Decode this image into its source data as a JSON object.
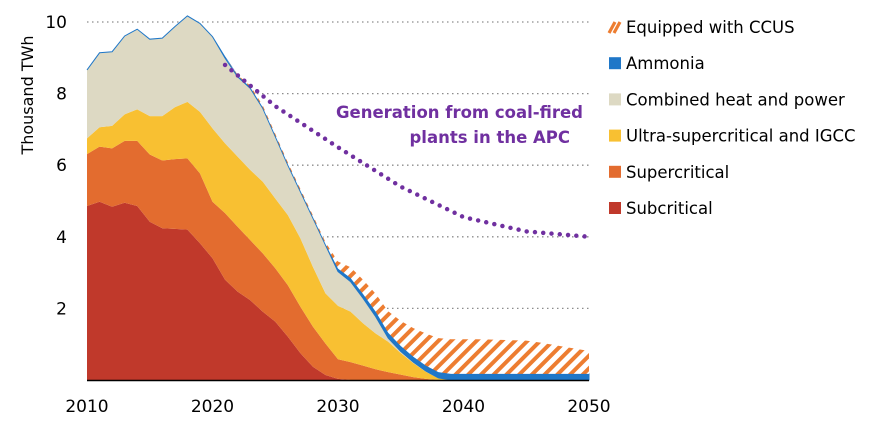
{
  "chart_data": {
    "type": "area",
    "stacked": true,
    "title": "",
    "xlabel": "",
    "ylabel": "Thousand TWh",
    "xlim": [
      2010,
      2050
    ],
    "ylim": [
      0,
      10
    ],
    "x_ticks": [
      2010,
      2020,
      2030,
      2040,
      2050
    ],
    "y_ticks": [
      2,
      4,
      6,
      8,
      10
    ],
    "grid": "horizontal dotted",
    "legend_position": "right",
    "x": [
      2010,
      2011,
      2012,
      2013,
      2014,
      2015,
      2016,
      2017,
      2018,
      2019,
      2020,
      2021,
      2022,
      2023,
      2024,
      2025,
      2026,
      2027,
      2028,
      2029,
      2030,
      2031,
      2032,
      2033,
      2034,
      2035,
      2036,
      2037,
      2038,
      2039,
      2040,
      2041,
      2042,
      2043,
      2044,
      2045,
      2046,
      2047,
      2048,
      2049,
      2050
    ],
    "series": [
      {
        "name": "Subcritical",
        "color": "#c0392b",
        "values": [
          4.86,
          4.98,
          4.84,
          4.95,
          4.86,
          4.42,
          4.24,
          4.22,
          4.2,
          3.82,
          3.4,
          2.8,
          2.47,
          2.23,
          1.91,
          1.63,
          1.21,
          0.75,
          0.37,
          0.14,
          0.03,
          0,
          0,
          0,
          0,
          0,
          0,
          0,
          0,
          0,
          0,
          0,
          0,
          0,
          0,
          0,
          0,
          0,
          0,
          0,
          0
        ]
      },
      {
        "name": "Supercritical",
        "color": "#e36c2f",
        "values": [
          1.45,
          1.54,
          1.63,
          1.73,
          1.82,
          1.88,
          1.89,
          1.95,
          1.99,
          1.95,
          1.58,
          1.86,
          1.81,
          1.68,
          1.63,
          1.49,
          1.44,
          1.3,
          1.12,
          0.88,
          0.55,
          0.5,
          0.4,
          0.3,
          0.22,
          0.15,
          0.08,
          0.03,
          0,
          0,
          0,
          0,
          0,
          0,
          0,
          0,
          0,
          0,
          0,
          0,
          0
        ]
      },
      {
        "name": "Ultra-supercritical and IGCC",
        "color": "#f8c032",
        "values": [
          0.44,
          0.54,
          0.63,
          0.74,
          0.88,
          1.07,
          1.24,
          1.45,
          1.58,
          1.72,
          2.05,
          1.95,
          1.96,
          1.96,
          2.0,
          1.95,
          1.96,
          1.91,
          1.67,
          1.4,
          1.49,
          1.41,
          1.18,
          1.0,
          0.85,
          0.6,
          0.39,
          0.2,
          0.05,
          0,
          0,
          0,
          0,
          0,
          0,
          0,
          0,
          0,
          0,
          0,
          0
        ]
      },
      {
        "name": "Combined heat and power",
        "color": "#ddd9c3",
        "values": [
          1.91,
          2.08,
          2.07,
          2.19,
          2.24,
          2.15,
          2.18,
          2.25,
          2.4,
          2.47,
          2.56,
          2.38,
          2.23,
          2.28,
          2.05,
          1.73,
          1.39,
          1.3,
          1.36,
          1.35,
          0.96,
          0.84,
          0.7,
          0.47,
          0.1,
          0.05,
          0.03,
          0.02,
          0.01,
          0,
          0,
          0,
          0,
          0,
          0,
          0,
          0,
          0,
          0,
          0,
          0
        ]
      },
      {
        "name": "Ammonia",
        "color": "#1f77c8",
        "values": [
          0,
          0,
          0,
          0,
          0,
          0,
          0,
          0,
          0,
          0,
          0,
          0.03,
          0.03,
          0.03,
          0.03,
          0.03,
          0.03,
          0.03,
          0.03,
          0.03,
          0.08,
          0.1,
          0.12,
          0.14,
          0.15,
          0.15,
          0.15,
          0.15,
          0.16,
          0.17,
          0.17,
          0.17,
          0.17,
          0.17,
          0.17,
          0.17,
          0.17,
          0.17,
          0.17,
          0.17,
          0.17
        ]
      },
      {
        "name": "Equipped with CCUS",
        "color": "#ed7d31",
        "pattern": "hatched",
        "values": [
          0,
          0,
          0,
          0,
          0,
          0,
          0,
          0,
          0,
          0,
          0,
          0,
          0.02,
          0.05,
          0.05,
          0.05,
          0.05,
          0.05,
          0.05,
          0.05,
          0.2,
          0.3,
          0.4,
          0.5,
          0.6,
          0.7,
          0.8,
          0.9,
          0.95,
          0.97,
          0.97,
          0.97,
          0.96,
          0.95,
          0.94,
          0.93,
          0.88,
          0.82,
          0.76,
          0.7,
          0.64
        ]
      }
    ],
    "line": {
      "name": "Generation from coal-fired plants in the APC",
      "label_lines": [
        "Generation from coal-fired",
        "plants in the APC"
      ],
      "color": "#7030a0",
      "style": "dotted",
      "x": [
        2021,
        2025,
        2030,
        2035,
        2040,
        2045,
        2050
      ],
      "values": [
        8.8,
        7.65,
        6.5,
        5.4,
        4.55,
        4.15,
        4.0
      ]
    }
  }
}
